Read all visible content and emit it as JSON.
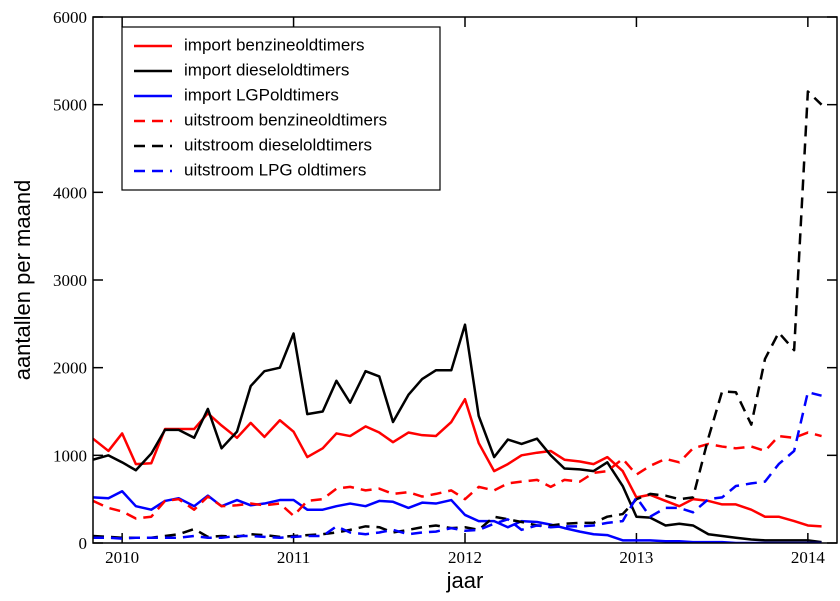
{
  "chart_data": {
    "type": "line",
    "x_label": "jaar",
    "y_label": "aantallen per maand",
    "x": [
      2009.83,
      2009.92,
      2010.0,
      2010.08,
      2010.17,
      2010.25,
      2010.33,
      2010.42,
      2010.5,
      2010.58,
      2010.67,
      2010.75,
      2010.83,
      2010.92,
      2011.0,
      2011.08,
      2011.17,
      2011.25,
      2011.33,
      2011.42,
      2011.5,
      2011.58,
      2011.67,
      2011.75,
      2011.83,
      2011.92,
      2012.0,
      2012.08,
      2012.17,
      2012.25,
      2012.33,
      2012.42,
      2012.5,
      2012.58,
      2012.67,
      2012.75,
      2012.83,
      2012.92,
      2013.0,
      2013.08,
      2013.17,
      2013.25,
      2013.33,
      2013.42,
      2013.5,
      2013.58,
      2013.67,
      2013.75,
      2013.83,
      2013.92,
      2014.0,
      2014.08
    ],
    "xlim": [
      2009.83,
      2014.17
    ],
    "xticks": [
      2010,
      2011,
      2012,
      2013,
      2014
    ],
    "ylim": [
      0,
      6000
    ],
    "yticks": [
      0,
      1000,
      2000,
      3000,
      4000,
      5000,
      6000
    ],
    "legend_position": "upper left",
    "series": [
      {
        "name": "import benzineoldtimers",
        "color": "#ff0000",
        "linestyle": "solid",
        "values": [
          1190,
          1050,
          1250,
          900,
          910,
          1300,
          1300,
          1300,
          1480,
          1340,
          1200,
          1370,
          1210,
          1400,
          1270,
          980,
          1080,
          1250,
          1220,
          1330,
          1260,
          1150,
          1260,
          1230,
          1220,
          1380,
          1640,
          1140,
          820,
          900,
          1000,
          1030,
          1050,
          950,
          930,
          900,
          980,
          820,
          520,
          550,
          480,
          420,
          500,
          480,
          440,
          440,
          380,
          300,
          300,
          250,
          200,
          190
        ]
      },
      {
        "name": "import dieseloldtimers",
        "color": "#000000",
        "linestyle": "solid",
        "values": [
          950,
          1000,
          920,
          830,
          1020,
          1290,
          1290,
          1200,
          1530,
          1080,
          1270,
          1790,
          1960,
          2000,
          2390,
          1470,
          1500,
          1850,
          1600,
          1960,
          1900,
          1380,
          1690,
          1870,
          1970,
          1970,
          2490,
          1450,
          980,
          1180,
          1130,
          1190,
          1000,
          850,
          840,
          820,
          920,
          650,
          300,
          290,
          200,
          220,
          200,
          100,
          80,
          60,
          40,
          30,
          30,
          30,
          30,
          10
        ]
      },
      {
        "name": "import LGPoldtimers",
        "color": "#0000ff",
        "linestyle": "solid",
        "values": [
          520,
          510,
          590,
          420,
          380,
          480,
          510,
          420,
          540,
          420,
          490,
          430,
          450,
          490,
          490,
          380,
          380,
          420,
          450,
          420,
          480,
          470,
          400,
          460,
          450,
          490,
          320,
          250,
          250,
          180,
          250,
          240,
          210,
          170,
          130,
          100,
          90,
          30,
          30,
          30,
          20,
          20,
          10,
          10,
          10,
          0,
          0,
          0,
          0,
          0,
          0,
          0
        ]
      },
      {
        "name": "uitstroom benzineoldtimers",
        "color": "#ff0000",
        "linestyle": "dashed",
        "values": [
          480,
          400,
          360,
          280,
          300,
          480,
          500,
          380,
          530,
          420,
          430,
          450,
          430,
          450,
          310,
          480,
          500,
          620,
          640,
          600,
          620,
          560,
          580,
          530,
          560,
          600,
          500,
          640,
          600,
          680,
          700,
          720,
          640,
          720,
          700,
          800,
          820,
          960,
          780,
          880,
          960,
          920,
          1080,
          1130,
          1100,
          1080,
          1100,
          1050,
          1220,
          1200,
          1260,
          1220
        ]
      },
      {
        "name": "uitstroom dieseloldtimers",
        "color": "#000000",
        "linestyle": "dashed",
        "values": [
          80,
          70,
          60,
          60,
          60,
          80,
          100,
          160,
          70,
          80,
          70,
          100,
          90,
          70,
          80,
          90,
          100,
          120,
          150,
          190,
          180,
          120,
          150,
          180,
          200,
          170,
          180,
          150,
          300,
          270,
          240,
          200,
          200,
          220,
          230,
          230,
          300,
          330,
          500,
          560,
          540,
          500,
          520,
          1200,
          1730,
          1720,
          1350,
          2100,
          2400,
          2200,
          5150,
          5000
        ]
      },
      {
        "name": "uitstroom LPG oldtimers",
        "color": "#0000ff",
        "linestyle": "dashed",
        "values": [
          60,
          60,
          50,
          60,
          60,
          60,
          60,
          80,
          60,
          60,
          80,
          80,
          70,
          60,
          70,
          80,
          80,
          190,
          120,
          100,
          120,
          150,
          100,
          120,
          130,
          170,
          140,
          150,
          220,
          270,
          150,
          200,
          180,
          190,
          190,
          200,
          230,
          250,
          520,
          300,
          400,
          400,
          350,
          500,
          520,
          650,
          680,
          700,
          900,
          1050,
          1720,
          1680
        ]
      }
    ]
  }
}
